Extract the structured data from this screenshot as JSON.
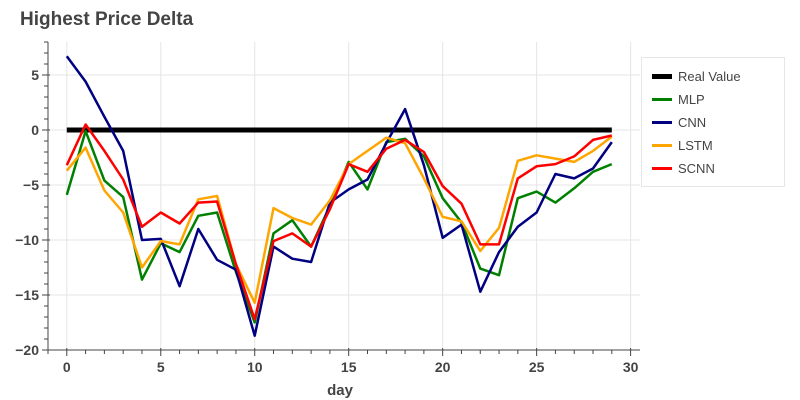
{
  "chart_data": {
    "type": "line",
    "title": "Highest Price Delta",
    "xlabel": "day",
    "ylabel": "",
    "xlim": [
      -1,
      30.5
    ],
    "ylim": [
      -20,
      8
    ],
    "xticks": [
      0,
      5,
      10,
      15,
      20,
      25,
      30
    ],
    "yticks": [
      5,
      0,
      -5,
      -10,
      -15,
      -20
    ],
    "grid": true,
    "legend_position": "right",
    "x": [
      0,
      1,
      2,
      3,
      4,
      5,
      6,
      7,
      8,
      9,
      10,
      11,
      12,
      13,
      14,
      15,
      16,
      17,
      18,
      19,
      20,
      21,
      22,
      23,
      24,
      25,
      26,
      27,
      28,
      29
    ],
    "series": [
      {
        "name": "Real Value",
        "color": "#000000",
        "values": [
          0,
          0,
          0,
          0,
          0,
          0,
          0,
          0,
          0,
          0,
          0,
          0,
          0,
          0,
          0,
          0,
          0,
          0,
          0,
          0,
          0,
          0,
          0,
          0,
          0,
          0,
          0,
          0,
          0,
          0
        ]
      },
      {
        "name": "MLP",
        "color": "#008000",
        "values": [
          -5.9,
          -0.1,
          -4.6,
          -6.1,
          -13.6,
          -10.3,
          -11.1,
          -7.8,
          -7.5,
          -12.9,
          -17.5,
          -9.4,
          -8.2,
          -10.6,
          -6.9,
          -2.9,
          -5.4,
          -1.1,
          -0.8,
          -2.4,
          -6.2,
          -8.4,
          -12.6,
          -13.2,
          -6.2,
          -5.6,
          -6.6,
          -5.3,
          -3.8,
          -3.1
        ]
      },
      {
        "name": "CNN",
        "color": "#000080",
        "values": [
          6.7,
          4.4,
          1.2,
          -1.9,
          -10.0,
          -9.9,
          -14.2,
          -9.0,
          -11.8,
          -12.7,
          -18.7,
          -10.6,
          -11.7,
          -12.0,
          -6.6,
          -5.4,
          -4.5,
          -1.2,
          1.9,
          -3.2,
          -9.8,
          -8.6,
          -14.7,
          -11.1,
          -8.8,
          -7.5,
          -4.0,
          -4.4,
          -3.5,
          -1.1
        ]
      },
      {
        "name": "LSTM",
        "color": "#FFA500",
        "values": [
          -3.7,
          -1.6,
          -5.5,
          -7.5,
          -12.5,
          -10.1,
          -10.4,
          -6.3,
          -6.0,
          -12.2,
          -15.7,
          -7.1,
          -8.0,
          -8.6,
          -6.4,
          -3.1,
          -1.9,
          -0.7,
          -1.2,
          -4.4,
          -7.9,
          -8.3,
          -11.0,
          -8.9,
          -2.8,
          -2.3,
          -2.6,
          -2.9,
          -1.9,
          -0.6
        ]
      },
      {
        "name": "SCNN",
        "color": "#FF0000",
        "values": [
          -3.2,
          0.5,
          -1.9,
          -4.5,
          -8.8,
          -7.5,
          -8.5,
          -6.6,
          -6.5,
          -12.2,
          -17.2,
          -10.1,
          -9.4,
          -10.6,
          -7.2,
          -3.1,
          -3.8,
          -1.7,
          -0.9,
          -2.0,
          -5.1,
          -6.7,
          -10.4,
          -10.4,
          -4.4,
          -3.3,
          -3.1,
          -2.4,
          -0.9,
          -0.5
        ]
      }
    ]
  }
}
